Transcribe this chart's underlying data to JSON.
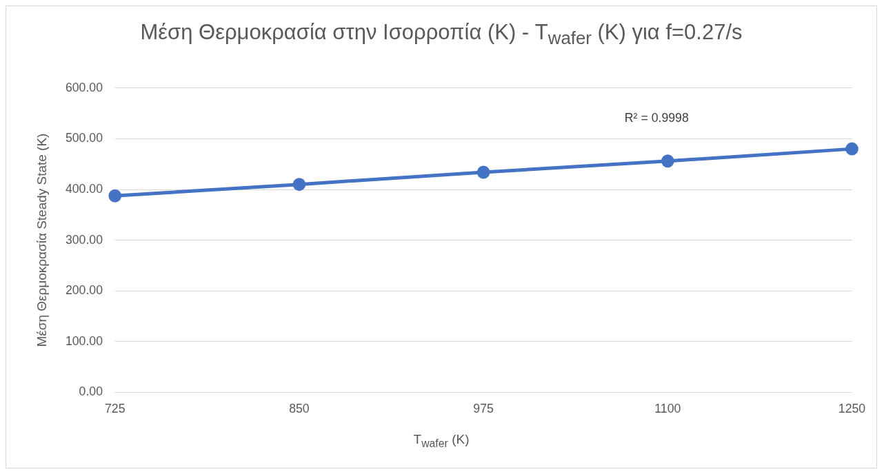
{
  "chart_data": {
    "type": "line",
    "title": "Μέση Θερμοκρασία στην Ισορροπία (K) - T$_{wafer}$ (K)  για f=0.27/s",
    "xlabel": "T$_{wafer}$ (K)",
    "ylabel": "Μέση Θερμοκρασία Steady State (K)",
    "categories": [
      "725",
      "850",
      "975",
      "1100",
      "1250"
    ],
    "series": [
      {
        "color": "#4472c4",
        "values": [
          387.5,
          410,
          434,
          456,
          480
        ]
      }
    ],
    "ylim": [
      0,
      600
    ],
    "yticks": [
      {
        "value": 0,
        "label": "0.00"
      },
      {
        "value": 100,
        "label": "100.00"
      },
      {
        "value": 200,
        "label": "200.00"
      },
      {
        "value": 300,
        "label": "300.00"
      },
      {
        "value": 400,
        "label": "400.00"
      },
      {
        "value": 500,
        "label": "500.00"
      },
      {
        "value": 600,
        "label": "600.00"
      }
    ],
    "grid": "y",
    "legend": false,
    "marker": "circle",
    "line_style": "solid",
    "annotations": [
      "R² = 0.9998"
    ]
  }
}
